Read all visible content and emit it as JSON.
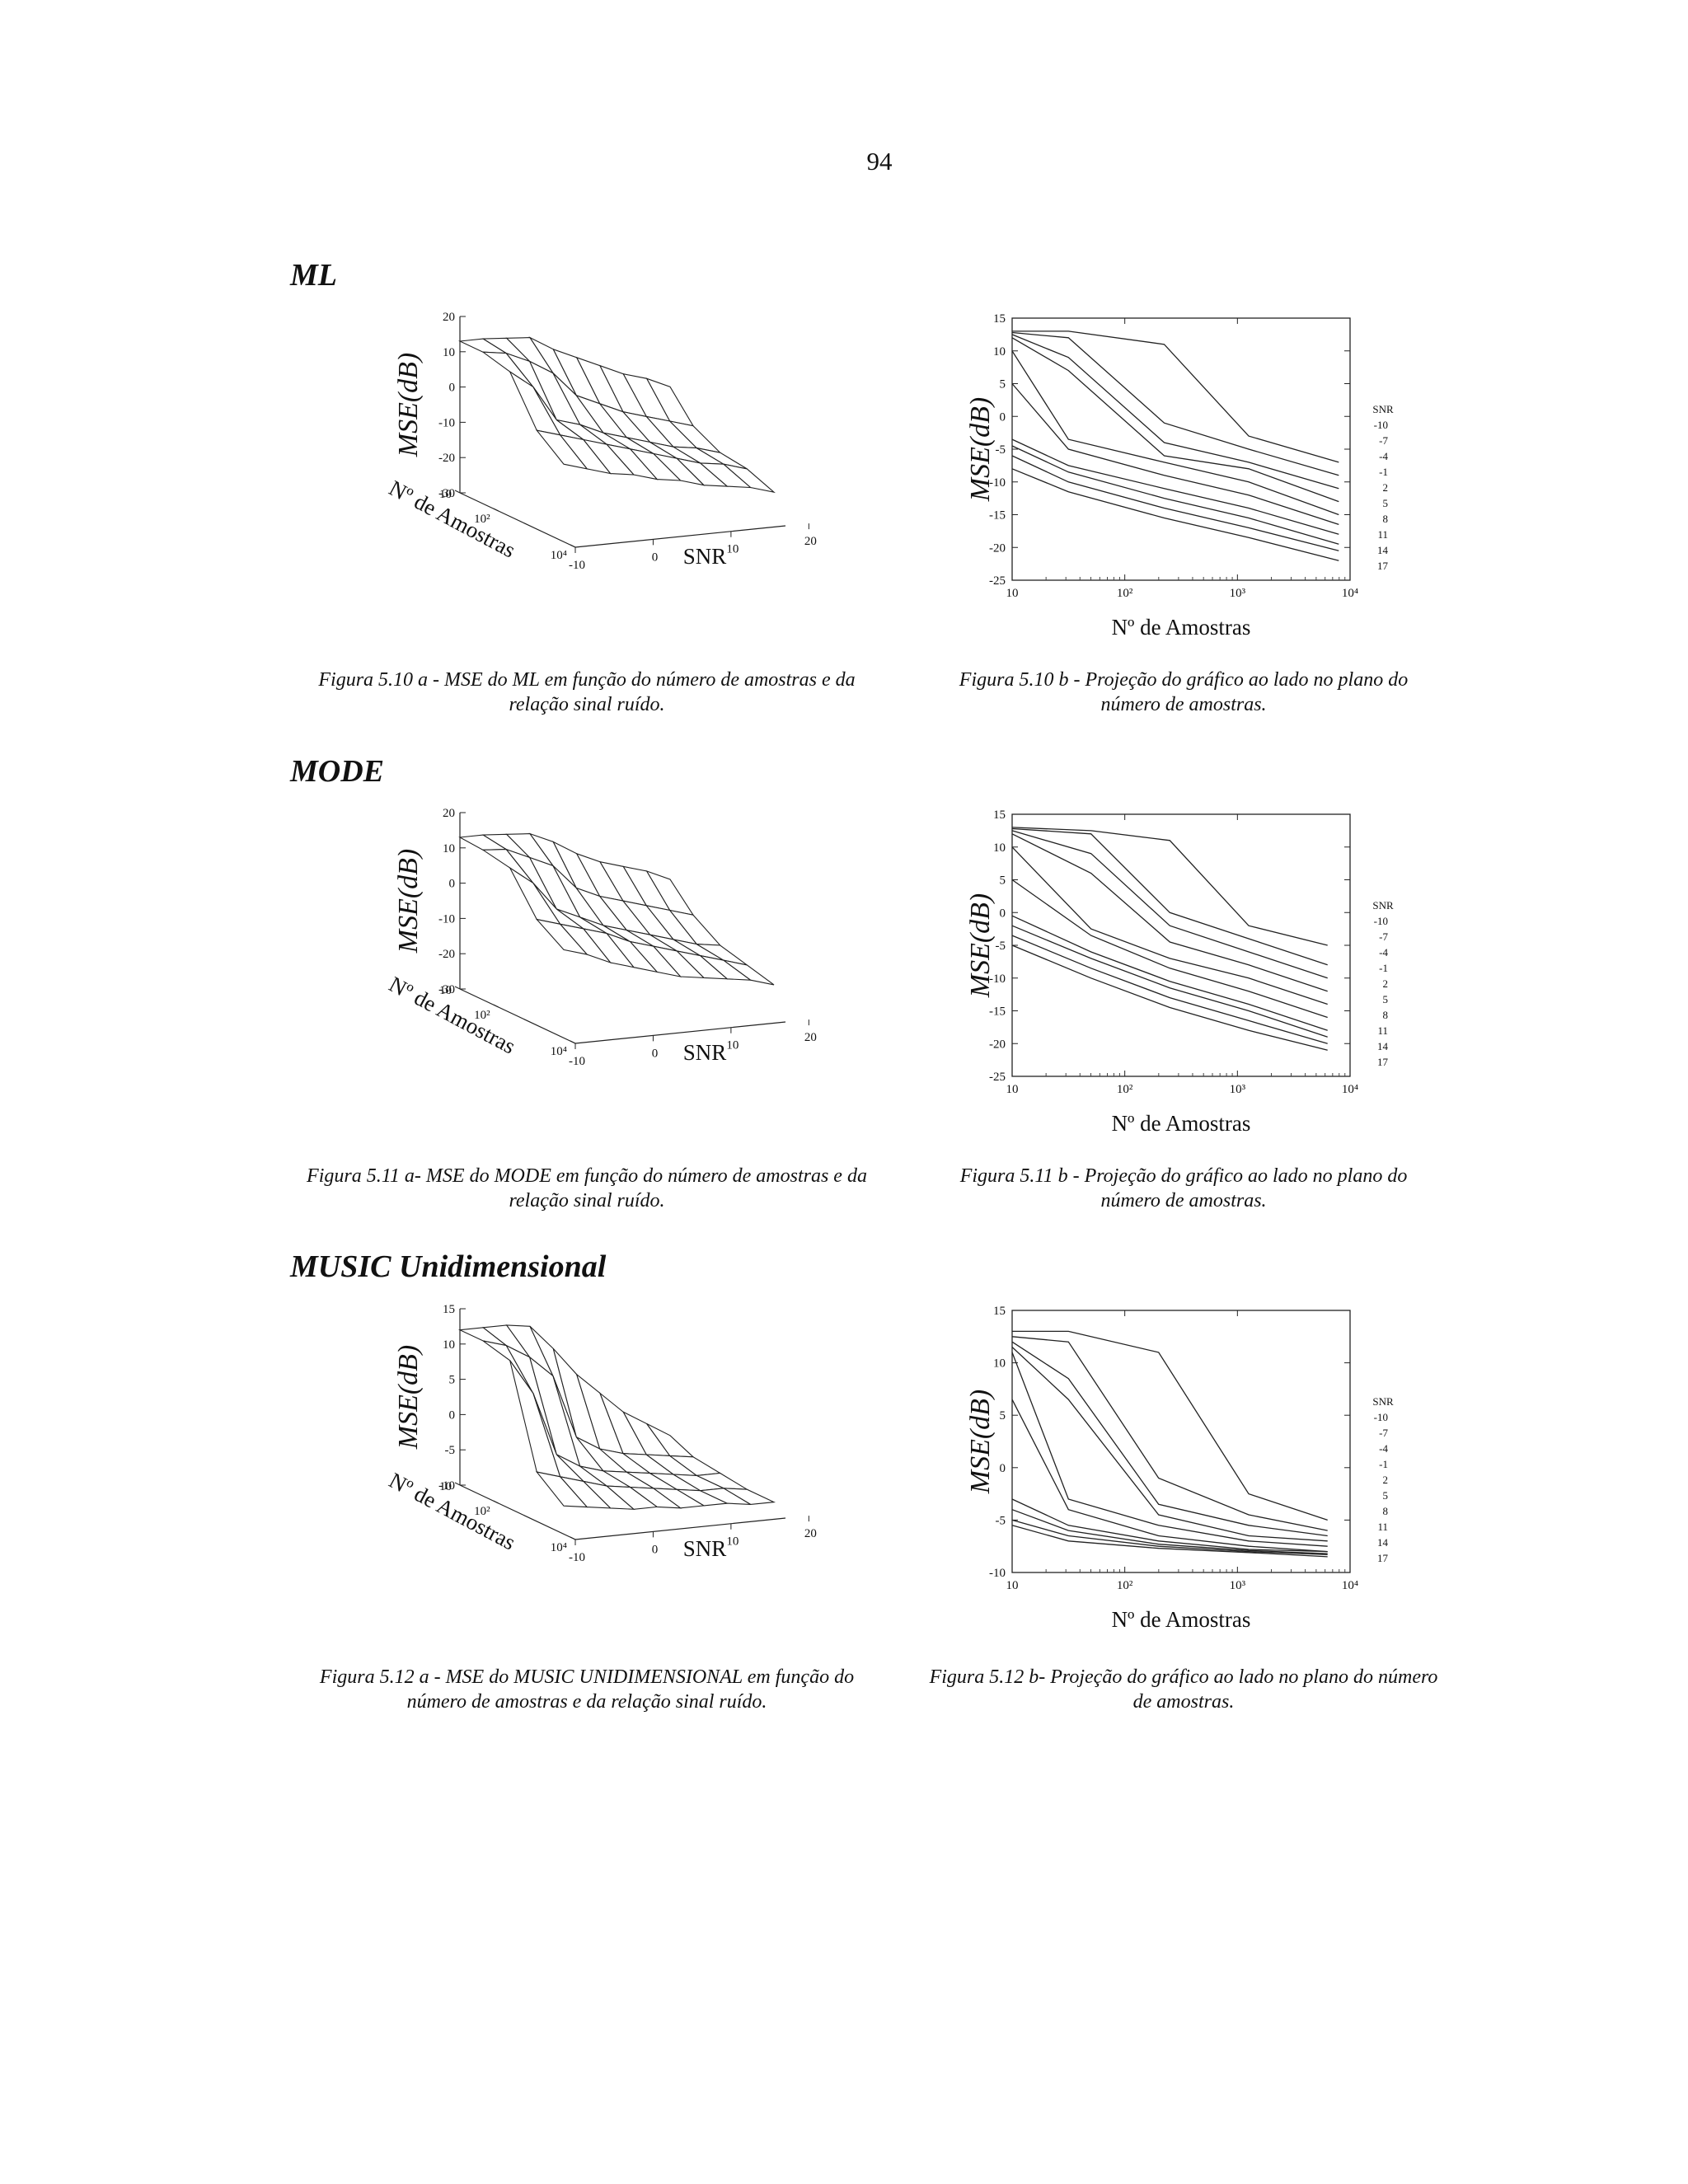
{
  "page": {
    "number": "94"
  },
  "sections": [
    {
      "heading": "ML"
    },
    {
      "heading": "MODE"
    },
    {
      "heading": "MUSIC Unidimensional"
    }
  ],
  "captions": [
    {
      "left": [
        "Figura 5.10 a - MSE do ML  em função do número de amostras e da",
        "relação sinal ruído."
      ],
      "right": [
        "Figura 5.10 b - Projeção do gráfico ao lado no plano do",
        "número de amostras."
      ]
    },
    {
      "left": [
        "Figura 5.11 a- MSE do MODE  em função do número de amostras e da",
        "relação sinal ruído."
      ],
      "right": [
        "Figura 5.11 b - Projeção do gráfico ao lado no plano do",
        "número de amostras."
      ]
    },
    {
      "left": [
        "Figura 5.12 a - MSE do MUSIC UNIDIMENSIONAL  em função do",
        "número de amostras e da relação sinal ruído."
      ],
      "right": [
        "Figura 5.12 b- Projeção do gráfico ao lado no plano do número",
        "de amostras."
      ]
    }
  ],
  "chart_data": [
    {
      "id": "fig-5-10a",
      "type": "surface",
      "zlabel": "MSE(dB)",
      "xlabel": "SNR",
      "ylabel": "Nº de Amostras",
      "zticks": [
        "20",
        "10",
        "0",
        "-10",
        "-20",
        "-30"
      ],
      "z_range": [
        -30,
        20
      ],
      "snr_ticks": [
        "-10",
        "0",
        "10",
        "20"
      ],
      "n_ticks": [
        "10",
        "10²",
        "10⁴"
      ],
      "snr": [
        -10,
        -7,
        -4,
        -1,
        2,
        5,
        8,
        11,
        14,
        17
      ],
      "n_log10": [
        1,
        1.6,
        2.3,
        3,
        3.7
      ],
      "mse": [
        [
          13,
          13,
          12.5,
          12,
          8,
          5,
          2,
          -1,
          -3,
          -6
        ],
        [
          13,
          12,
          9,
          5,
          -2,
          -5,
          -8,
          -10,
          -12,
          -14
        ],
        [
          11,
          6,
          -4,
          -6,
          -9,
          -11,
          -13,
          -15,
          -16,
          -18
        ],
        [
          -2,
          -4,
          -6,
          -8,
          -10,
          -12,
          -14,
          -16,
          -17,
          -19
        ],
        [
          -8,
          -10,
          -12,
          -13,
          -15,
          -16,
          -18,
          -19,
          -20,
          -22
        ]
      ]
    },
    {
      "id": "fig-5-10b",
      "type": "line",
      "ylabel": "MSE(dB)",
      "xlabel": "Nº de Amostras",
      "y_range": [
        -25,
        15
      ],
      "yticks": [
        "15",
        "10",
        "5",
        "0",
        "-5",
        "-10",
        "-15",
        "-20",
        "-25"
      ],
      "xticks": [
        "10",
        "10²",
        "10³",
        "10⁴"
      ],
      "x_log_range": [
        1,
        4
      ],
      "legend_title": "SNR",
      "series": [
        {
          "name": "-10",
          "x_log10": [
            1,
            1.5,
            2.35,
            3.1,
            3.9
          ],
          "mse": [
            13,
            13,
            11,
            -3,
            -7
          ]
        },
        {
          "name": "-7",
          "x_log10": [
            1,
            1.5,
            2.35,
            3.1,
            3.9
          ],
          "mse": [
            12.8,
            12,
            -1,
            -5,
            -9
          ]
        },
        {
          "name": "-4",
          "x_log10": [
            1,
            1.5,
            2.35,
            3.1,
            3.9
          ],
          "mse": [
            12.5,
            9,
            -4,
            -7,
            -11
          ]
        },
        {
          "name": "-1",
          "x_log10": [
            1,
            1.5,
            2.35,
            3.1,
            3.9
          ],
          "mse": [
            12,
            7,
            -6,
            -8,
            -13
          ]
        },
        {
          "name": "2",
          "x_log10": [
            1,
            1.5,
            2.35,
            3.1,
            3.9
          ],
          "mse": [
            10,
            -3.5,
            -7,
            -10,
            -15
          ]
        },
        {
          "name": "5",
          "x_log10": [
            1,
            1.5,
            2.35,
            3.1,
            3.9
          ],
          "mse": [
            5,
            -5,
            -9,
            -12,
            -16.5
          ]
        },
        {
          "name": "8",
          "x_log10": [
            1,
            1.5,
            2.35,
            3.1,
            3.9
          ],
          "mse": [
            -3.5,
            -7.5,
            -11,
            -14,
            -18
          ]
        },
        {
          "name": "11",
          "x_log10": [
            1,
            1.5,
            2.35,
            3.1,
            3.9
          ],
          "mse": [
            -4.5,
            -8.5,
            -12.5,
            -15.5,
            -19.5
          ]
        },
        {
          "name": "14",
          "x_log10": [
            1,
            1.5,
            2.35,
            3.1,
            3.9
          ],
          "mse": [
            -6,
            -10,
            -14,
            -17,
            -20.5
          ]
        },
        {
          "name": "17",
          "x_log10": [
            1,
            1.5,
            2.35,
            3.1,
            3.9
          ],
          "mse": [
            -8,
            -11.5,
            -15.5,
            -18.5,
            -22
          ]
        }
      ]
    },
    {
      "id": "fig-5-11a",
      "type": "surface",
      "zlabel": "MSE(dB)",
      "xlabel": "SNR",
      "ylabel": "Nº de Amostras",
      "zticks": [
        "20",
        "10",
        "0",
        "-10",
        "-20",
        "-30"
      ],
      "z_range": [
        -30,
        20
      ],
      "snr_ticks": [
        "-10",
        "0",
        "10",
        "20"
      ],
      "n_ticks": [
        "10",
        "10²",
        "10⁴"
      ],
      "snr": [
        -10,
        -7,
        -4,
        -1,
        2,
        5,
        8,
        11,
        14,
        17
      ],
      "n_log10": [
        1,
        1.6,
        2.3,
        3,
        3.7
      ],
      "mse": [
        [
          13,
          13,
          12.5,
          12,
          9,
          5,
          2,
          0,
          -2,
          -5
        ],
        [
          12.5,
          12,
          9,
          6,
          -1,
          -4,
          -6,
          -8,
          -10,
          -12
        ],
        [
          11,
          6,
          -2,
          -5,
          -8,
          -10,
          -12,
          -14,
          -16,
          -17
        ],
        [
          0,
          -2,
          -4,
          -6,
          -9,
          -11,
          -13,
          -15,
          -17,
          -19
        ],
        [
          -5,
          -7,
          -10,
          -12,
          -14,
          -16,
          -17,
          -18,
          -19,
          -21
        ]
      ]
    },
    {
      "id": "fig-5-11b",
      "type": "line",
      "ylabel": "MSE(dB)",
      "xlabel": "Nº de Amostras",
      "y_range": [
        -25,
        15
      ],
      "yticks": [
        "15",
        "10",
        "5",
        "0",
        "-5",
        "-10",
        "-15",
        "-20",
        "-25"
      ],
      "xticks": [
        "10",
        "10²",
        "10³",
        "10⁴"
      ],
      "x_log_range": [
        1,
        4
      ],
      "legend_title": "SNR",
      "series": [
        {
          "name": "-10",
          "x_log10": [
            1,
            1.7,
            2.4,
            3.1,
            3.8
          ],
          "mse": [
            13,
            12.5,
            11,
            -2,
            -5
          ]
        },
        {
          "name": "-7",
          "x_log10": [
            1,
            1.7,
            2.4,
            3.1,
            3.8
          ],
          "mse": [
            12.8,
            12,
            0,
            -4,
            -8
          ]
        },
        {
          "name": "-4",
          "x_log10": [
            1,
            1.7,
            2.4,
            3.1,
            3.8
          ],
          "mse": [
            12.5,
            9,
            -2,
            -6,
            -10
          ]
        },
        {
          "name": "-1",
          "x_log10": [
            1,
            1.7,
            2.4,
            3.1,
            3.8
          ],
          "mse": [
            12,
            6,
            -4.5,
            -8,
            -12
          ]
        },
        {
          "name": "2",
          "x_log10": [
            1,
            1.7,
            2.4,
            3.1,
            3.8
          ],
          "mse": [
            10,
            -2.5,
            -7,
            -10,
            -14
          ]
        },
        {
          "name": "5",
          "x_log10": [
            1,
            1.7,
            2.4,
            3.1,
            3.8
          ],
          "mse": [
            5,
            -3.5,
            -8.5,
            -12,
            -16
          ]
        },
        {
          "name": "8",
          "x_log10": [
            1,
            1.7,
            2.4,
            3.1,
            3.8
          ],
          "mse": [
            -0.5,
            -6,
            -10.5,
            -14,
            -18
          ]
        },
        {
          "name": "11",
          "x_log10": [
            1,
            1.7,
            2.4,
            3.1,
            3.8
          ],
          "mse": [
            -2,
            -7,
            -11.5,
            -15,
            -19
          ]
        },
        {
          "name": "14",
          "x_log10": [
            1,
            1.7,
            2.4,
            3.1,
            3.8
          ],
          "mse": [
            -3.5,
            -8.5,
            -13,
            -16.5,
            -20
          ]
        },
        {
          "name": "17",
          "x_log10": [
            1,
            1.7,
            2.4,
            3.1,
            3.8
          ],
          "mse": [
            -5,
            -10,
            -14.5,
            -18,
            -21
          ]
        }
      ]
    },
    {
      "id": "fig-5-12a",
      "type": "surface",
      "zlabel": "MSE(dB)",
      "xlabel": "SNR",
      "ylabel": "Nº de Amostras",
      "zticks": [
        "15",
        "10",
        "5",
        "0",
        "-5",
        "-10"
      ],
      "z_range": [
        -10,
        15
      ],
      "snr_ticks": [
        "-10",
        "0",
        "10",
        "20"
      ],
      "n_ticks": [
        "10",
        "10²",
        "10⁴"
      ],
      "snr": [
        -10,
        -7,
        -4,
        -1,
        2,
        5,
        8,
        11,
        14,
        17
      ],
      "n_log10": [
        1,
        1.6,
        2.3,
        3,
        3.7
      ],
      "mse": [
        [
          12,
          12,
          12,
          11.5,
          8,
          4,
          1,
          -2,
          -4,
          -6
        ],
        [
          12,
          11,
          9,
          6,
          -3,
          -5,
          -6,
          -6.5,
          -7,
          -7.5
        ],
        [
          11,
          6,
          -3,
          -5,
          -6,
          -6.5,
          -7,
          -7.5,
          -8,
          -8
        ],
        [
          -3,
          -4,
          -5,
          -6,
          -6.5,
          -7,
          -7.5,
          -8,
          -8,
          -8.5
        ],
        [
          -6,
          -6.5,
          -7,
          -7.5,
          -7.5,
          -8,
          -8,
          -8,
          -8.5,
          -8.5
        ]
      ]
    },
    {
      "id": "fig-5-12b",
      "type": "line",
      "ylabel": "MSE(dB)",
      "xlabel": "Nº de Amostras",
      "y_range": [
        -10,
        15
      ],
      "yticks": [
        "15",
        "10",
        "5",
        "0",
        "-5",
        "-10"
      ],
      "xticks": [
        "10",
        "10²",
        "10³",
        "10⁴"
      ],
      "x_log_range": [
        1,
        4
      ],
      "legend_title": "SNR",
      "series": [
        {
          "name": "-10",
          "x_log10": [
            1,
            1.5,
            2.3,
            3.1,
            3.8
          ],
          "mse": [
            13,
            13,
            11,
            -2.5,
            -5
          ]
        },
        {
          "name": "-7",
          "x_log10": [
            1,
            1.5,
            2.3,
            3.1,
            3.8
          ],
          "mse": [
            12.5,
            12,
            -1,
            -4.5,
            -6
          ]
        },
        {
          "name": "-4",
          "x_log10": [
            1,
            1.5,
            2.3,
            3.1,
            3.8
          ],
          "mse": [
            12,
            8.5,
            -3.5,
            -5.5,
            -6.5
          ]
        },
        {
          "name": "-1",
          "x_log10": [
            1,
            1.5,
            2.3,
            3.1,
            3.8
          ],
          "mse": [
            11.5,
            6.5,
            -4.5,
            -6.5,
            -7
          ]
        },
        {
          "name": "2",
          "x_log10": [
            1,
            1.5,
            2.3,
            3.1,
            3.8
          ],
          "mse": [
            11,
            -3,
            -5.5,
            -7,
            -7.5
          ]
        },
        {
          "name": "5",
          "x_log10": [
            1,
            1.5,
            2.3,
            3.1,
            3.8
          ],
          "mse": [
            6.5,
            -4,
            -6.5,
            -7.5,
            -8
          ]
        },
        {
          "name": "8",
          "x_log10": [
            1,
            1.5,
            2.3,
            3.1,
            3.8
          ],
          "mse": [
            -3,
            -5.5,
            -7,
            -7.8,
            -8
          ]
        },
        {
          "name": "11",
          "x_log10": [
            1,
            1.5,
            2.3,
            3.1,
            3.8
          ],
          "mse": [
            -4,
            -6,
            -7.3,
            -7.9,
            -8.2
          ]
        },
        {
          "name": "14",
          "x_log10": [
            1,
            1.5,
            2.3,
            3.1,
            3.8
          ],
          "mse": [
            -5,
            -6.5,
            -7.5,
            -8,
            -8.3
          ]
        },
        {
          "name": "17",
          "x_log10": [
            1,
            1.5,
            2.3,
            3.1,
            3.8
          ],
          "mse": [
            -5.5,
            -7,
            -7.7,
            -8.1,
            -8.5
          ]
        }
      ]
    }
  ]
}
